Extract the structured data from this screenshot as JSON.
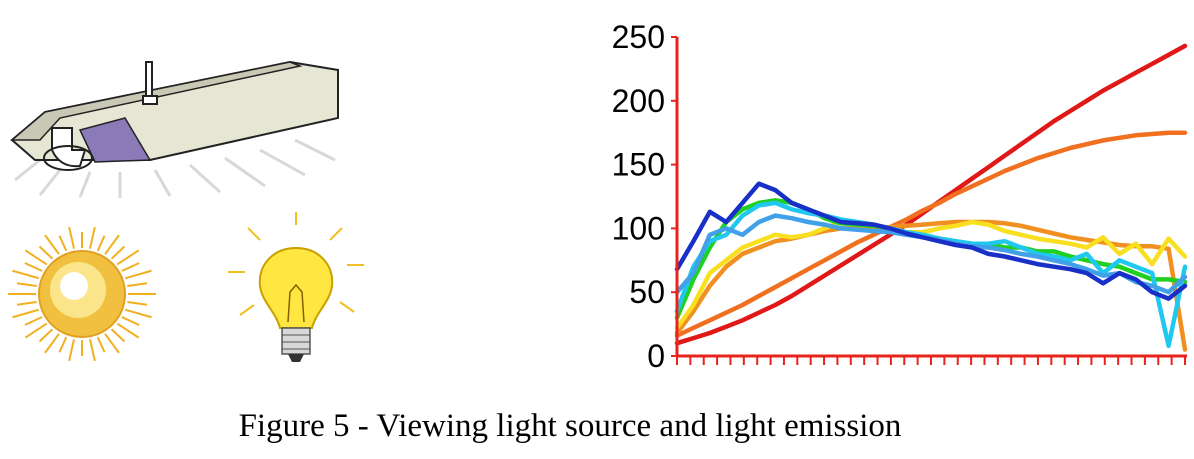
{
  "illustrations": [
    {
      "name": "fluorescent-lamp-icon"
    },
    {
      "name": "sun-icon"
    },
    {
      "name": "light-bulb-icon"
    }
  ],
  "caption": "Figure 5 - Viewing light source and light emission",
  "chart_data": {
    "type": "line",
    "title": "",
    "xlabel": "",
    "ylabel": "",
    "ylim": [
      0,
      250
    ],
    "yticks": [
      0,
      50,
      100,
      150,
      200,
      250
    ],
    "x_tick_count": 38,
    "grid": false,
    "legend": "none",
    "axis_color": "#e8231c",
    "series": [
      {
        "color": "#e01818",
        "values": [
          10,
          14,
          18,
          23,
          28,
          34,
          40,
          47,
          55,
          63,
          71,
          79,
          87,
          95,
          103,
          112,
          121,
          130,
          139,
          148,
          157,
          166,
          175,
          184,
          192,
          200,
          208,
          215,
          222,
          229,
          236,
          243
        ]
      },
      {
        "color": "#f07020",
        "values": [
          16,
          22,
          28,
          34,
          40,
          47,
          54,
          61,
          68,
          75,
          82,
          89,
          95,
          101,
          107,
          114,
          120,
          127,
          133,
          139,
          145,
          150,
          155,
          159,
          163,
          166,
          169,
          171,
          173,
          174,
          175,
          175
        ]
      },
      {
        "color": "#f09020",
        "values": [
          18,
          35,
          55,
          70,
          80,
          85,
          90,
          92,
          95,
          98,
          100,
          100,
          101,
          101,
          102,
          103,
          104,
          105,
          105,
          105,
          104,
          102,
          99,
          96,
          93,
          91,
          89,
          87,
          86,
          86,
          84,
          5
        ]
      },
      {
        "color": "#f8e020",
        "values": [
          22,
          40,
          65,
          75,
          85,
          90,
          95,
          93,
          95,
          100,
          105,
          105,
          103,
          100,
          97,
          97,
          100,
          102,
          105,
          103,
          98,
          95,
          92,
          90,
          88,
          85,
          93,
          80,
          88,
          72,
          92,
          78
        ]
      },
      {
        "color": "#20d020",
        "values": [
          30,
          60,
          85,
          105,
          115,
          120,
          122,
          120,
          115,
          108,
          104,
          103,
          102,
          100,
          97,
          95,
          92,
          90,
          88,
          88,
          85,
          85,
          82,
          82,
          78,
          75,
          72,
          70,
          65,
          60,
          60,
          58
        ]
      },
      {
        "color": "#20c8f0",
        "values": [
          35,
          70,
          90,
          95,
          110,
          118,
          120,
          115,
          112,
          110,
          107,
          105,
          103,
          100,
          97,
          95,
          92,
          90,
          88,
          88,
          90,
          85,
          80,
          78,
          75,
          80,
          65,
          75,
          70,
          65,
          8,
          70
        ]
      },
      {
        "color": "#40a0e8",
        "values": [
          50,
          65,
          95,
          100,
          95,
          105,
          110,
          108,
          105,
          103,
          100,
          99,
          98,
          97,
          95,
          93,
          91,
          88,
          86,
          85,
          83,
          80,
          78,
          75,
          72,
          68,
          63,
          65,
          58,
          55,
          50,
          62
        ]
      },
      {
        "color": "#1830c8",
        "values": [
          68,
          90,
          113,
          105,
          120,
          135,
          130,
          120,
          115,
          110,
          105,
          104,
          103,
          100,
          96,
          93,
          90,
          87,
          85,
          80,
          78,
          75,
          72,
          70,
          68,
          65,
          57,
          65,
          60,
          50,
          45,
          55
        ]
      }
    ]
  }
}
